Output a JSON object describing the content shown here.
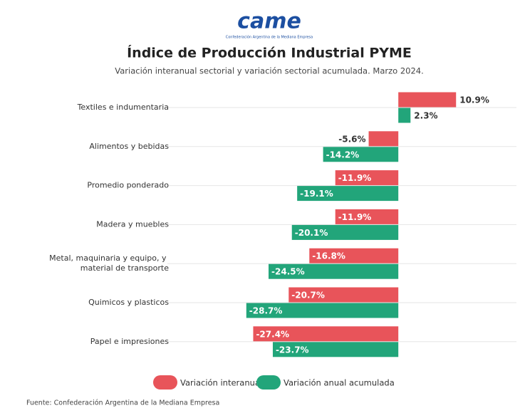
{
  "logo": {
    "text": "came",
    "caption": "Confederación Argentina de la Mediana Empresa"
  },
  "chart_data": {
    "type": "hbar",
    "title": "Índice de Producción Industrial PYME",
    "subtitle": "Variación interanual sectorial y variación sectorial acumulada. Marzo 2024.",
    "categories": [
      "Textiles e indumentaria",
      "Alimentos y bebidas",
      "Promedio ponderado",
      "Madera y muebles",
      "Metal, maquinaria y equipo, y material de transporte",
      "Quimicos y plasticos",
      "Papel e impresiones"
    ],
    "series": [
      {
        "name": "Variación interanual",
        "color": "#e8545a",
        "values": [
          10.9,
          -5.6,
          -11.9,
          -11.9,
          -16.8,
          -20.7,
          -27.4
        ],
        "value_labels": [
          "10.9%",
          "-5.6%",
          "-11.9%",
          "-11.9%",
          "-16.8%",
          "-20.7%",
          "-27.4%"
        ]
      },
      {
        "name": "Variación anual acumulada",
        "color": "#22a57a",
        "values": [
          2.3,
          -14.2,
          -19.1,
          -20.1,
          -24.5,
          -28.7,
          -23.7
        ],
        "value_labels": [
          "2.3%",
          "-14.2%",
          "-19.1%",
          "-20.1%",
          "-24.5%",
          "-28.7%",
          "-23.7%"
        ]
      }
    ],
    "xlim": [
      -43.6,
      22.3
    ],
    "grid": true,
    "legend": "bottom",
    "source": "Fuente: Confederación Argentina de la Mediana Empresa"
  }
}
